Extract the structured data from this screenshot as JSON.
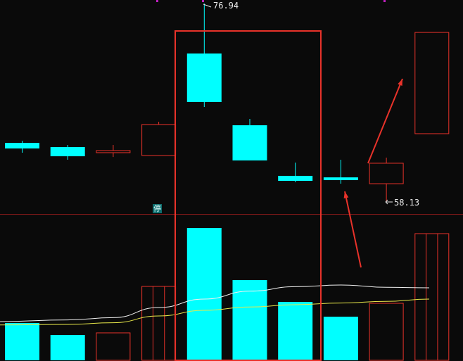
{
  "chart_data": {
    "type": "candlestick",
    "colors": {
      "up": "#e8322a",
      "down": "#00ffff",
      "ma_fast": "#f0f0f0",
      "ma_slow": "#e8e84a",
      "highlight": "#e8322a",
      "divider": "#8a1a1a",
      "tick": "#c020c0"
    },
    "candles": [
      {
        "open": 63.73,
        "close": 63.2,
        "high": 63.93,
        "low": 62.8
      },
      {
        "open": 63.33,
        "close": 62.46,
        "high": 63.53,
        "low": 62.13
      },
      {
        "open": 62.8,
        "close": 63.0,
        "high": 63.53,
        "low": 62.39
      },
      {
        "open": 62.53,
        "close": 65.47,
        "high": 65.73,
        "low": 62.53
      },
      {
        "open": 72.2,
        "close": 67.6,
        "high": 76.94,
        "low": 67.13
      },
      {
        "open": 65.4,
        "close": 62.06,
        "high": 66.0,
        "low": 62.06
      },
      {
        "open": 60.6,
        "close": 60.13,
        "high": 61.86,
        "low": 60.0
      },
      {
        "open": 60.46,
        "close": 60.2,
        "high": 62.13,
        "low": 59.86
      },
      {
        "open": 59.86,
        "close": 61.8,
        "high": 62.33,
        "low": 58.13
      },
      {
        "open": 64.6,
        "close": 74.2,
        "high": 74.2,
        "low": 64.6
      }
    ],
    "volume": [
      53,
      36,
      39,
      105,
      188,
      114,
      83,
      62,
      81,
      180
    ],
    "ma_fast": [
      10,
      13,
      17,
      35,
      50,
      64,
      72,
      75,
      71,
      70
    ],
    "ma_slow": [
      4,
      5,
      8,
      20,
      30,
      36,
      40,
      43,
      46,
      50
    ],
    "annotations": {
      "high_label": "76.94",
      "low_label": "58.13",
      "halt_label": "停"
    }
  }
}
